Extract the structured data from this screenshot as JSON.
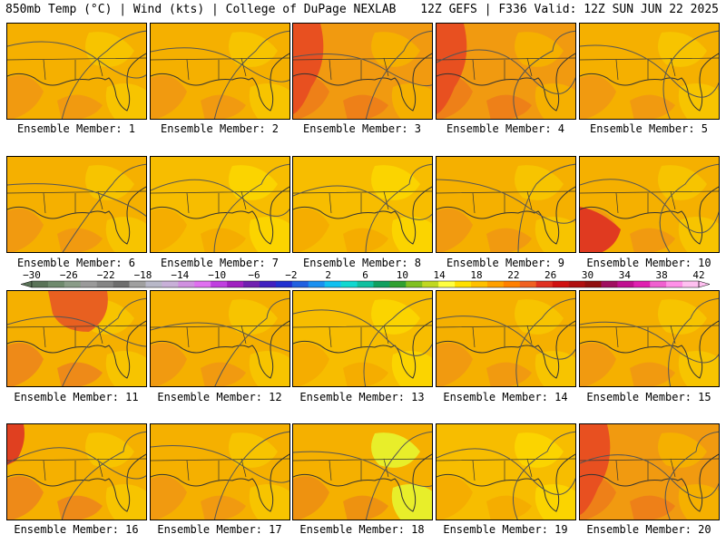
{
  "header": {
    "left": "850mb Temp (°C) | Wind (kts) | College of DuPage NEXLAB",
    "right": "12Z GEFS | F336 Valid: 12Z SUN JUN 22 2025"
  },
  "panels": [
    {
      "label": "Ensemble Member: 1",
      "tone": "mid"
    },
    {
      "label": "Ensemble Member: 2",
      "tone": "mid"
    },
    {
      "label": "Ensemble Member: 3",
      "tone": "hot_west"
    },
    {
      "label": "Ensemble Member: 4",
      "tone": "hot_west"
    },
    {
      "label": "Ensemble Member: 5",
      "tone": "mid"
    },
    {
      "label": "Ensemble Member: 6",
      "tone": "mid"
    },
    {
      "label": "Ensemble Member: 7",
      "tone": "cool"
    },
    {
      "label": "Ensemble Member: 8",
      "tone": "cool"
    },
    {
      "label": "Ensemble Member: 9",
      "tone": "mid"
    },
    {
      "label": "Ensemble Member: 10",
      "tone": "hot_sw"
    },
    {
      "label": "Ensemble Member: 11",
      "tone": "hot_north"
    },
    {
      "label": "Ensemble Member: 12",
      "tone": "mid"
    },
    {
      "label": "Ensemble Member: 13",
      "tone": "cool"
    },
    {
      "label": "Ensemble Member: 14",
      "tone": "mid"
    },
    {
      "label": "Ensemble Member: 15",
      "tone": "mid"
    },
    {
      "label": "Ensemble Member: 16",
      "tone": "hot_nw"
    },
    {
      "label": "Ensemble Member: 17",
      "tone": "mid"
    },
    {
      "label": "Ensemble Member: 18",
      "tone": "cool_north"
    },
    {
      "label": "Ensemble Member: 19",
      "tone": "cool"
    },
    {
      "label": "Ensemble Member: 20",
      "tone": "hot_west"
    }
  ],
  "colorbar": {
    "labels": [
      "−30",
      "−26",
      "−22",
      "−18",
      "−14",
      "−10",
      "−6",
      "−2",
      "2",
      "6",
      "10",
      "14",
      "18",
      "22",
      "26",
      "30",
      "34",
      "38",
      "42"
    ],
    "colors": [
      "#5a7358",
      "#6f8a6d",
      "#8a9c88",
      "#9a9a9a",
      "#858585",
      "#6e6e6e",
      "#a0a0a0",
      "#b8b8c8",
      "#c8b0d8",
      "#d090e0",
      "#e070f0",
      "#c040e0",
      "#a020c0",
      "#7020b0",
      "#4020c0",
      "#2030d0",
      "#2060e0",
      "#1a90f0",
      "#10c0f0",
      "#10d8d0",
      "#10c0a0",
      "#10a060",
      "#30a030",
      "#80c020",
      "#c0d820",
      "#ffff40",
      "#ffe000",
      "#ffc000",
      "#ffa000",
      "#ff8000",
      "#f06020",
      "#e03020",
      "#d01010",
      "#b01010",
      "#901010",
      "#a01060",
      "#c01090",
      "#e020b0",
      "#f060d0",
      "#ff90e8",
      "#ffc0f0"
    ]
  }
}
